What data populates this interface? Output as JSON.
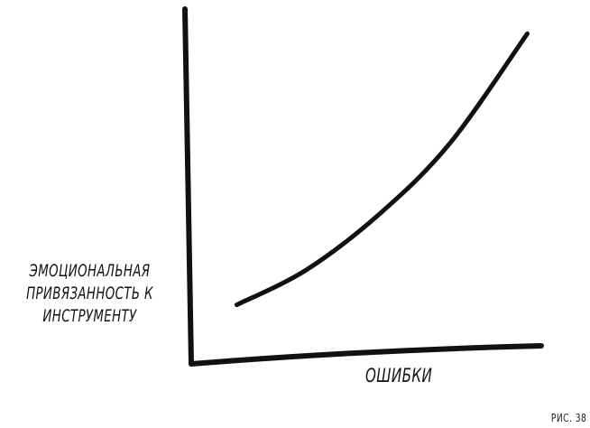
{
  "chart_data": {
    "type": "line",
    "title": "",
    "xlabel": "ОШИБКИ",
    "ylabel": "ЭМОЦИОНАЛЬНАЯ ПРИВЯЗАННОСТЬ К ИНСТРУМЕНТУ",
    "xlim": [
      0,
      10
    ],
    "ylim": [
      0,
      10
    ],
    "grid": false,
    "ticks": false,
    "series": [
      {
        "x": [
          1.3,
          3.3,
          5.4,
          7.4,
          9.6
        ],
        "y": [
          1.6,
          2.6,
          4.2,
          6.2,
          9.3
        ],
        "color": "#111111"
      }
    ]
  },
  "caption": "РИС. 38"
}
